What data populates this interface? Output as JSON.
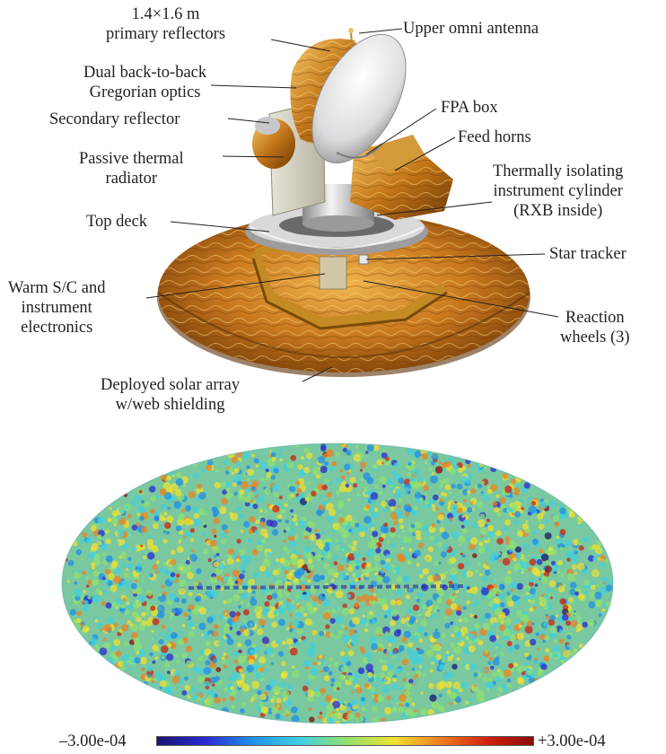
{
  "labels": {
    "primary_reflectors": [
      "1.4×1.6 m",
      "primary reflectors"
    ],
    "upper_omni": "Upper omni antenna",
    "gregorian": [
      "Dual back-to-back",
      "Gregorian optics"
    ],
    "secondary": "Secondary reflector",
    "fpa": "FPA box",
    "feed_horns": "Feed horns",
    "radiator": [
      "Passive thermal",
      "radiator"
    ],
    "cylinder": [
      "Thermally isolating",
      "instrument cylinder",
      "(RXB inside)"
    ],
    "top_deck": "Top deck",
    "star_tracker": "Star tracker",
    "warm_sc": [
      "Warm S/C and",
      "instrument",
      "electronics"
    ],
    "reaction": [
      "Reaction",
      "wheels (3)"
    ],
    "solar_array": [
      "Deployed solar array",
      "w/web shielding"
    ]
  },
  "colorbar": {
    "min_label": "–3.00e-04",
    "max_label": "+3.00e-04",
    "colors": [
      "#1a1470",
      "#2a2ad0",
      "#1f8fe8",
      "#40d0e0",
      "#8fe070",
      "#f0e030",
      "#f08020",
      "#d02010",
      "#8c0a0a"
    ]
  },
  "colors": {
    "gold_light": "#f1b84a",
    "gold_dark": "#8a4d0a",
    "dish": "#e8e8ea",
    "map_base": "#79c8a0"
  }
}
